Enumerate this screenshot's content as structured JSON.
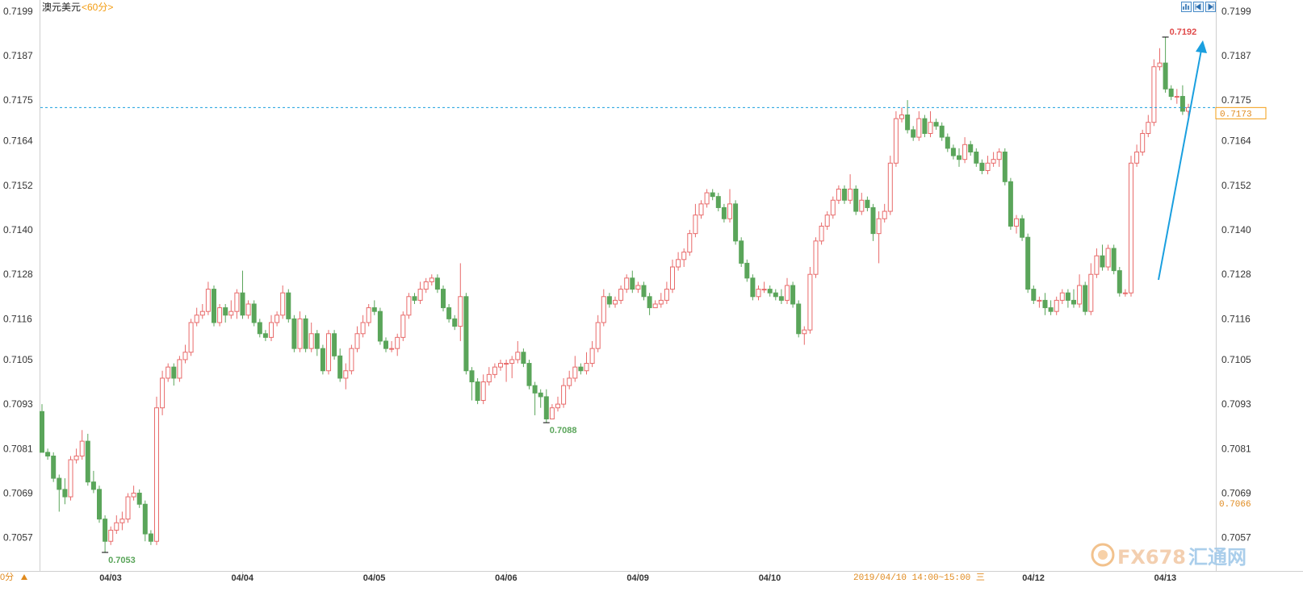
{
  "header": {
    "symbol": "澳元美元",
    "interval": "<60分>"
  },
  "toolbar": {
    "icons": [
      "chart-icon",
      "scroll-left-icon",
      "scroll-right-icon"
    ]
  },
  "cursor_time": "2019/04/10 14:00~15:00 三",
  "corner_label": "0分",
  "current_price": "0.7173",
  "lower_price_tag": "0.7066",
  "logo": {
    "brand": "FX678",
    "cn": "汇通网"
  },
  "colors": {
    "up": "#e86a6a",
    "down": "#5aa55a",
    "trend_arrow": "#1a9fdf",
    "price_line": "#1a9fdf",
    "price_tag": "#f39c12"
  },
  "chart_data": {
    "type": "candlestick",
    "title": "澳元美元",
    "interval": "60分",
    "ylim": [
      0.7048,
      0.7202
    ],
    "y_ticks": [
      "0.7199",
      "0.7187",
      "0.7175",
      "0.7164",
      "0.7152",
      "0.7140",
      "0.7128",
      "0.7116",
      "0.7105",
      "0.7093",
      "0.7081",
      "0.7069",
      "0.7057"
    ],
    "x_tick_labels": [
      {
        "label": "04/03",
        "index": 12
      },
      {
        "label": "04/04",
        "index": 35
      },
      {
        "label": "04/05",
        "index": 58
      },
      {
        "label": "04/06",
        "index": 81
      },
      {
        "label": "04/09",
        "index": 104
      },
      {
        "label": "04/10",
        "index": 127
      },
      {
        "label": "04/12",
        "index": 173
      },
      {
        "label": "04/13",
        "index": 196
      }
    ],
    "annotations": [
      {
        "text": "0.7053",
        "type": "low"
      },
      {
        "text": "0.7088",
        "type": "low"
      },
      {
        "text": "0.7192",
        "type": "high"
      }
    ],
    "reference_line": 0.7173,
    "candles": [
      [
        0.7091,
        0.708,
        0.7093,
        0.708
      ],
      [
        0.708,
        0.7079,
        0.7081,
        0.7078
      ],
      [
        0.7079,
        0.7073,
        0.708,
        0.7072
      ],
      [
        0.7073,
        0.707,
        0.7074,
        0.7064
      ],
      [
        0.707,
        0.7068,
        0.7073,
        0.7066
      ],
      [
        0.7068,
        0.7078,
        0.7079,
        0.7067
      ],
      [
        0.7078,
        0.7079,
        0.7081,
        0.7077
      ],
      [
        0.7079,
        0.7083,
        0.7086,
        0.7078
      ],
      [
        0.7083,
        0.7072,
        0.7085,
        0.7071
      ],
      [
        0.7072,
        0.707,
        0.7075,
        0.7069
      ],
      [
        0.707,
        0.7062,
        0.7071,
        0.7061
      ],
      [
        0.7062,
        0.7056,
        0.7063,
        0.7053
      ],
      [
        0.7056,
        0.7059,
        0.706,
        0.7055
      ],
      [
        0.7059,
        0.7061,
        0.7063,
        0.7058
      ],
      [
        0.7061,
        0.7062,
        0.7064,
        0.7059
      ],
      [
        0.7062,
        0.7068,
        0.7069,
        0.7061
      ],
      [
        0.7068,
        0.7069,
        0.7071,
        0.7067
      ],
      [
        0.7069,
        0.7066,
        0.707,
        0.7065
      ],
      [
        0.7066,
        0.7058,
        0.7067,
        0.7056
      ],
      [
        0.7058,
        0.7056,
        0.7059,
        0.7055
      ],
      [
        0.7056,
        0.7092,
        0.7095,
        0.7055
      ],
      [
        0.7092,
        0.71,
        0.7102,
        0.709
      ],
      [
        0.71,
        0.7103,
        0.7104,
        0.7099
      ],
      [
        0.7103,
        0.71,
        0.7104,
        0.7098
      ],
      [
        0.71,
        0.7105,
        0.7106,
        0.7099
      ],
      [
        0.7105,
        0.7107,
        0.7109,
        0.7104
      ],
      [
        0.7107,
        0.7115,
        0.7116,
        0.7106
      ],
      [
        0.7115,
        0.7117,
        0.7119,
        0.7114
      ],
      [
        0.7117,
        0.7118,
        0.712,
        0.7116
      ],
      [
        0.7118,
        0.7124,
        0.7126,
        0.7117
      ],
      [
        0.7124,
        0.7115,
        0.7125,
        0.7114
      ],
      [
        0.7115,
        0.7119,
        0.712,
        0.7114
      ],
      [
        0.7119,
        0.7117,
        0.712,
        0.7115
      ],
      [
        0.7117,
        0.7118,
        0.7121,
        0.7116
      ],
      [
        0.7118,
        0.7123,
        0.7124,
        0.7116
      ],
      [
        0.7123,
        0.7117,
        0.7129,
        0.7116
      ],
      [
        0.7117,
        0.712,
        0.7121,
        0.7116
      ],
      [
        0.712,
        0.7115,
        0.7121,
        0.7114
      ],
      [
        0.7115,
        0.7112,
        0.7116,
        0.7111
      ],
      [
        0.7112,
        0.7111,
        0.7113,
        0.711
      ],
      [
        0.7111,
        0.7115,
        0.7117,
        0.711
      ],
      [
        0.7115,
        0.7117,
        0.7118,
        0.7114
      ],
      [
        0.7117,
        0.7123,
        0.7125,
        0.7116
      ],
      [
        0.7123,
        0.7116,
        0.7124,
        0.7115
      ],
      [
        0.7116,
        0.7108,
        0.7117,
        0.7107
      ],
      [
        0.7108,
        0.7116,
        0.7118,
        0.7107
      ],
      [
        0.7116,
        0.7108,
        0.7117,
        0.7107
      ],
      [
        0.7108,
        0.7112,
        0.7115,
        0.7107
      ],
      [
        0.7112,
        0.7108,
        0.7113,
        0.7106
      ],
      [
        0.7108,
        0.7102,
        0.7109,
        0.7101
      ],
      [
        0.7102,
        0.7112,
        0.7113,
        0.7101
      ],
      [
        0.7112,
        0.7106,
        0.7113,
        0.7105
      ],
      [
        0.7106,
        0.71,
        0.7108,
        0.7099
      ],
      [
        0.71,
        0.7102,
        0.7104,
        0.7097
      ],
      [
        0.7102,
        0.7108,
        0.7109,
        0.7101
      ],
      [
        0.7108,
        0.7112,
        0.7114,
        0.7107
      ],
      [
        0.7112,
        0.7115,
        0.7117,
        0.7111
      ],
      [
        0.7115,
        0.7119,
        0.712,
        0.7114
      ],
      [
        0.7119,
        0.7118,
        0.7121,
        0.7117
      ],
      [
        0.7118,
        0.711,
        0.7119,
        0.7109
      ],
      [
        0.711,
        0.7108,
        0.7111,
        0.7107
      ],
      [
        0.7108,
        0.7108,
        0.711,
        0.7107
      ],
      [
        0.7108,
        0.7111,
        0.7112,
        0.7106
      ],
      [
        0.7111,
        0.7117,
        0.7118,
        0.711
      ],
      [
        0.7117,
        0.7122,
        0.7123,
        0.7116
      ],
      [
        0.7122,
        0.7121,
        0.7123,
        0.712
      ],
      [
        0.7121,
        0.7124,
        0.7126,
        0.712
      ],
      [
        0.7124,
        0.7126,
        0.7127,
        0.7123
      ],
      [
        0.7126,
        0.7127,
        0.7128,
        0.7125
      ],
      [
        0.7127,
        0.7124,
        0.7128,
        0.7123
      ],
      [
        0.7124,
        0.7119,
        0.7125,
        0.7118
      ],
      [
        0.7119,
        0.7116,
        0.712,
        0.7115
      ],
      [
        0.7116,
        0.7114,
        0.7117,
        0.7113
      ],
      [
        0.7114,
        0.7122,
        0.7131,
        0.711
      ],
      [
        0.7122,
        0.7102,
        0.7123,
        0.7101
      ],
      [
        0.7102,
        0.7099,
        0.7103,
        0.7094
      ],
      [
        0.7099,
        0.7094,
        0.71,
        0.7093
      ],
      [
        0.7094,
        0.7099,
        0.7101,
        0.7093
      ],
      [
        0.7099,
        0.7101,
        0.7103,
        0.7098
      ],
      [
        0.7101,
        0.7103,
        0.7104,
        0.71
      ],
      [
        0.7103,
        0.7104,
        0.7105,
        0.7102
      ],
      [
        0.7104,
        0.7104,
        0.7105,
        0.7099
      ],
      [
        0.7104,
        0.7105,
        0.7106,
        0.71
      ],
      [
        0.7105,
        0.7107,
        0.711,
        0.7104
      ],
      [
        0.7107,
        0.7104,
        0.7108,
        0.7103
      ],
      [
        0.7104,
        0.7098,
        0.7105,
        0.7097
      ],
      [
        0.7098,
        0.7096,
        0.7099,
        0.709
      ],
      [
        0.7096,
        0.7095,
        0.7097,
        0.7092
      ],
      [
        0.7095,
        0.7089,
        0.7097,
        0.7088
      ],
      [
        0.7089,
        0.7092,
        0.7093,
        0.7089
      ],
      [
        0.7092,
        0.7093,
        0.7095,
        0.7091
      ],
      [
        0.7093,
        0.7098,
        0.71,
        0.7092
      ],
      [
        0.7098,
        0.71,
        0.7102,
        0.7097
      ],
      [
        0.71,
        0.7103,
        0.7106,
        0.7099
      ],
      [
        0.7103,
        0.7102,
        0.7104,
        0.7101
      ],
      [
        0.7102,
        0.7104,
        0.7107,
        0.7101
      ],
      [
        0.7104,
        0.7108,
        0.711,
        0.7103
      ],
      [
        0.7108,
        0.7115,
        0.7117,
        0.7107
      ],
      [
        0.7115,
        0.7122,
        0.7124,
        0.7114
      ],
      [
        0.7122,
        0.712,
        0.7123,
        0.7119
      ],
      [
        0.712,
        0.7121,
        0.7122,
        0.7119
      ],
      [
        0.7121,
        0.7124,
        0.7125,
        0.712
      ],
      [
        0.7124,
        0.7127,
        0.7128,
        0.7123
      ],
      [
        0.7127,
        0.7124,
        0.7129,
        0.7123
      ],
      [
        0.7124,
        0.7125,
        0.7126,
        0.7123
      ],
      [
        0.7125,
        0.7122,
        0.7126,
        0.7121
      ],
      [
        0.7122,
        0.7119,
        0.7123,
        0.7117
      ],
      [
        0.7119,
        0.712,
        0.7121,
        0.7119
      ],
      [
        0.712,
        0.7121,
        0.7123,
        0.7119
      ],
      [
        0.7121,
        0.7124,
        0.7126,
        0.712
      ],
      [
        0.7124,
        0.713,
        0.7132,
        0.7123
      ],
      [
        0.713,
        0.7132,
        0.7134,
        0.7129
      ],
      [
        0.7132,
        0.7134,
        0.7135,
        0.713
      ],
      [
        0.7134,
        0.7139,
        0.714,
        0.7133
      ],
      [
        0.7139,
        0.7144,
        0.7147,
        0.7138
      ],
      [
        0.7144,
        0.7147,
        0.7148,
        0.7143
      ],
      [
        0.7147,
        0.715,
        0.7151,
        0.7146
      ],
      [
        0.715,
        0.7149,
        0.7151,
        0.7148
      ],
      [
        0.7149,
        0.7146,
        0.715,
        0.7145
      ],
      [
        0.7146,
        0.7143,
        0.7147,
        0.7142
      ],
      [
        0.7143,
        0.7147,
        0.7151,
        0.7142
      ],
      [
        0.7147,
        0.7137,
        0.7148,
        0.7136
      ],
      [
        0.7137,
        0.7131,
        0.7138,
        0.713
      ],
      [
        0.7131,
        0.7127,
        0.7132,
        0.7126
      ],
      [
        0.7127,
        0.7122,
        0.7128,
        0.7121
      ],
      [
        0.7122,
        0.7124,
        0.7125,
        0.7121
      ],
      [
        0.7124,
        0.7124,
        0.7126,
        0.7123
      ],
      [
        0.7124,
        0.7123,
        0.7125,
        0.7122
      ],
      [
        0.7123,
        0.7122,
        0.7124,
        0.7121
      ],
      [
        0.7122,
        0.7121,
        0.7124,
        0.712
      ],
      [
        0.7121,
        0.7125,
        0.7127,
        0.712
      ],
      [
        0.7125,
        0.712,
        0.7126,
        0.7119
      ],
      [
        0.712,
        0.7112,
        0.7121,
        0.7111
      ],
      [
        0.7112,
        0.7113,
        0.7114,
        0.7109
      ],
      [
        0.7113,
        0.7128,
        0.713,
        0.7112
      ],
      [
        0.7128,
        0.7137,
        0.7138,
        0.7127
      ],
      [
        0.7137,
        0.7141,
        0.7142,
        0.7136
      ],
      [
        0.7141,
        0.7144,
        0.7145,
        0.714
      ],
      [
        0.7144,
        0.7148,
        0.7149,
        0.7143
      ],
      [
        0.7148,
        0.7151,
        0.7152,
        0.7147
      ],
      [
        0.7151,
        0.7148,
        0.7152,
        0.7147
      ],
      [
        0.7148,
        0.7151,
        0.7155,
        0.7147
      ],
      [
        0.7151,
        0.7145,
        0.7152,
        0.7144
      ],
      [
        0.7145,
        0.7148,
        0.715,
        0.7144
      ],
      [
        0.7148,
        0.7146,
        0.7149,
        0.7145
      ],
      [
        0.7146,
        0.7139,
        0.7147,
        0.7137
      ],
      [
        0.7139,
        0.7143,
        0.7145,
        0.7131
      ],
      [
        0.7143,
        0.7145,
        0.7147,
        0.7142
      ],
      [
        0.7145,
        0.7158,
        0.716,
        0.7144
      ],
      [
        0.7158,
        0.717,
        0.7172,
        0.7157
      ],
      [
        0.717,
        0.7171,
        0.7173,
        0.7169
      ],
      [
        0.7171,
        0.7167,
        0.7175,
        0.7166
      ],
      [
        0.7167,
        0.7165,
        0.7168,
        0.7164
      ],
      [
        0.7165,
        0.717,
        0.7172,
        0.7164
      ],
      [
        0.717,
        0.7166,
        0.7171,
        0.7165
      ],
      [
        0.7166,
        0.7169,
        0.7172,
        0.7165
      ],
      [
        0.7169,
        0.7168,
        0.717,
        0.7167
      ],
      [
        0.7168,
        0.7165,
        0.7169,
        0.7164
      ],
      [
        0.7165,
        0.7162,
        0.7166,
        0.7161
      ],
      [
        0.7162,
        0.716,
        0.7163,
        0.7159
      ],
      [
        0.716,
        0.7159,
        0.7162,
        0.7157
      ],
      [
        0.7159,
        0.7163,
        0.7165,
        0.7158
      ],
      [
        0.7163,
        0.7161,
        0.7164,
        0.716
      ],
      [
        0.7161,
        0.7158,
        0.7162,
        0.7157
      ],
      [
        0.7158,
        0.7156,
        0.7159,
        0.7155
      ],
      [
        0.7156,
        0.7158,
        0.716,
        0.7155
      ],
      [
        0.7158,
        0.7159,
        0.7161,
        0.7157
      ],
      [
        0.7159,
        0.7161,
        0.7162,
        0.7157
      ],
      [
        0.7161,
        0.7153,
        0.7162,
        0.7152
      ],
      [
        0.7153,
        0.7141,
        0.7154,
        0.714
      ],
      [
        0.7141,
        0.7143,
        0.7144,
        0.7139
      ],
      [
        0.7143,
        0.7138,
        0.7144,
        0.7137
      ],
      [
        0.7138,
        0.7124,
        0.7139,
        0.7123
      ],
      [
        0.7124,
        0.7121,
        0.7125,
        0.712
      ],
      [
        0.7121,
        0.7121,
        0.7122,
        0.7119
      ],
      [
        0.7121,
        0.7119,
        0.7123,
        0.7117
      ],
      [
        0.7119,
        0.7118,
        0.7121,
        0.7117
      ],
      [
        0.7118,
        0.7121,
        0.7122,
        0.7117
      ],
      [
        0.7121,
        0.7123,
        0.7124,
        0.712
      ],
      [
        0.7123,
        0.7121,
        0.7124,
        0.7119
      ],
      [
        0.7121,
        0.712,
        0.7124,
        0.7119
      ],
      [
        0.712,
        0.7125,
        0.7128,
        0.7119
      ],
      [
        0.7125,
        0.7118,
        0.7126,
        0.7117
      ],
      [
        0.7118,
        0.7128,
        0.7131,
        0.7117
      ],
      [
        0.7128,
        0.7133,
        0.7135,
        0.7127
      ],
      [
        0.7133,
        0.713,
        0.7136,
        0.7129
      ],
      [
        0.713,
        0.7135,
        0.7136,
        0.7129
      ],
      [
        0.7135,
        0.7129,
        0.7136,
        0.7128
      ],
      [
        0.7129,
        0.7123,
        0.713,
        0.7122
      ],
      [
        0.7123,
        0.7123,
        0.7124,
        0.7122
      ],
      [
        0.7123,
        0.7158,
        0.716,
        0.7122
      ],
      [
        0.7158,
        0.7161,
        0.7163,
        0.7157
      ],
      [
        0.7161,
        0.7166,
        0.7167,
        0.716
      ],
      [
        0.7166,
        0.7169,
        0.7171,
        0.7165
      ],
      [
        0.7169,
        0.7184,
        0.7186,
        0.7168
      ],
      [
        0.7184,
        0.7185,
        0.7189,
        0.7183
      ],
      [
        0.7185,
        0.7178,
        0.7192,
        0.7177
      ],
      [
        0.7178,
        0.7176,
        0.7179,
        0.7175
      ],
      [
        0.7176,
        0.7176,
        0.7178,
        0.7174
      ],
      [
        0.7176,
        0.7172,
        0.7179,
        0.7171
      ],
      [
        0.7172,
        0.7173,
        0.7174,
        0.7169
      ]
    ]
  }
}
